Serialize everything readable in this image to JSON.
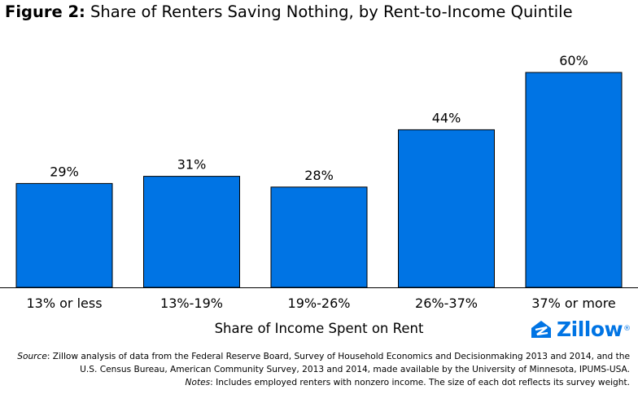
{
  "title_prefix": "Figure 2:",
  "title_text": " Share of Renters Saving Nothing, by Rent-to-Income Quintile",
  "chart_data": {
    "type": "bar",
    "title": "Figure 2: Share of Renters Saving Nothing, by Rent-to-Income Quintile",
    "categories": [
      "13% or less",
      "13%-19%",
      "19%-26%",
      "26%-37%",
      "37% or more"
    ],
    "values": [
      29,
      31,
      28,
      44,
      60
    ],
    "value_labels": [
      "29%",
      "31%",
      "28%",
      "44%",
      "60%"
    ],
    "xlabel": "Share of Income Spent on Rent",
    "ylabel": "",
    "ylim": [
      0,
      65
    ],
    "grid": false,
    "bar_color": "#0074e4"
  },
  "logo_text": "Zillow",
  "logo_mark": "®",
  "source_label": "Source",
  "source_text": ": Zillow analysis of data from the Federal Reserve Board, Survey of Household Economics and Decisionmaking 2013 and 2014, and the U.S. Census Bureau, American Community Survey, 2013 and 2014, made available by the University of Minnesota, IPUMS-USA.",
  "notes_label": "Notes",
  "notes_text": ": Includes employed renters with nonzero income. The size of each dot reflects its survey weight."
}
